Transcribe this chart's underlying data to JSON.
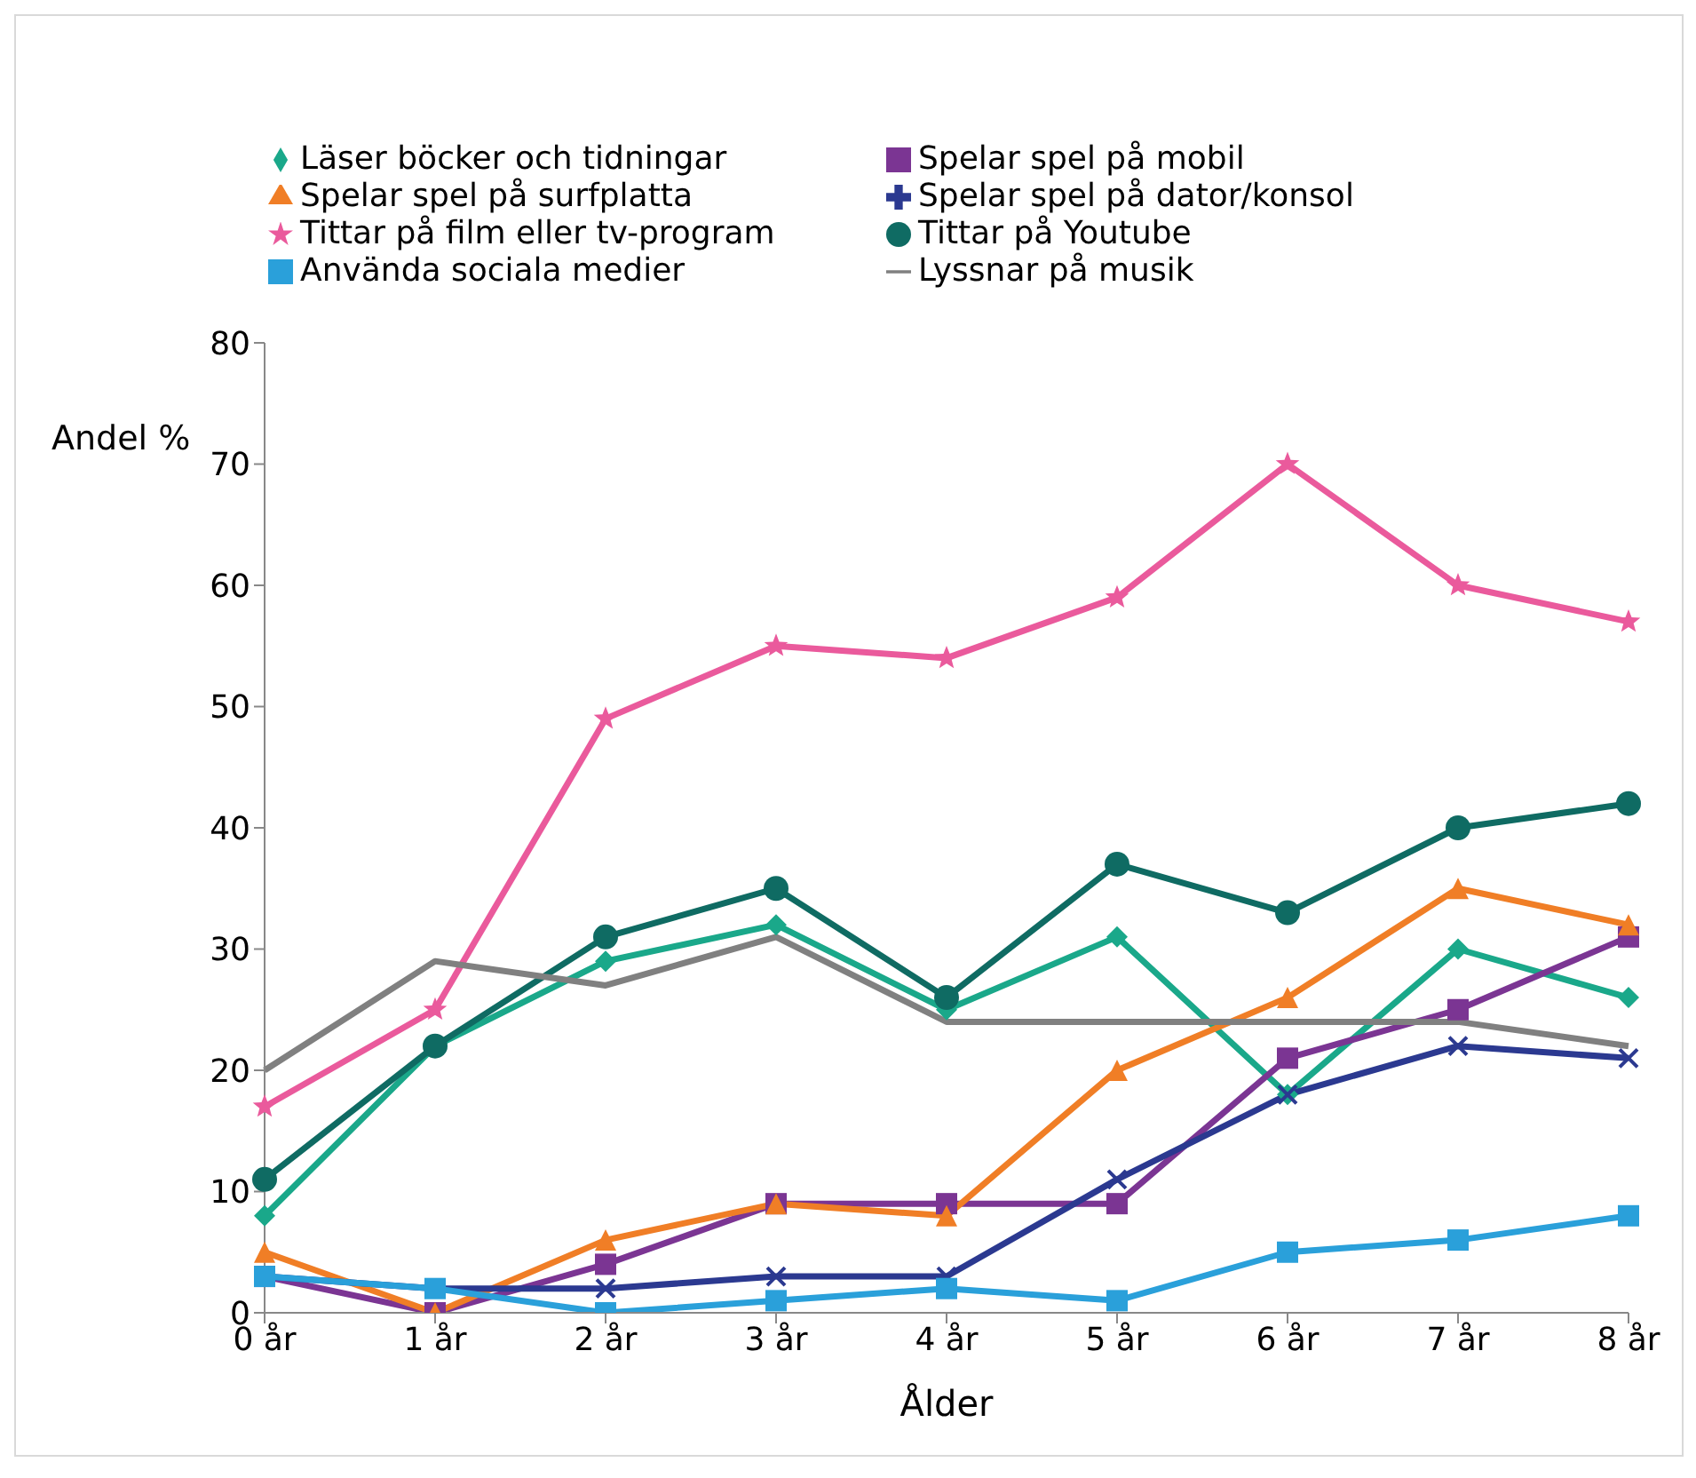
{
  "chart_data": {
    "type": "line",
    "xlabel": "Ålder",
    "ylabel": "Andel %",
    "categories": [
      "0 år",
      "1 år",
      "2 år",
      "3 år",
      "4 år",
      "5 år",
      "6 år",
      "7 år",
      "8 år"
    ],
    "ylim": [
      0,
      80
    ],
    "yticks": [
      0,
      10,
      20,
      30,
      40,
      50,
      60,
      70,
      80
    ],
    "grid": false,
    "legend": "top",
    "series": [
      {
        "name": "Läser böcker och tidningar",
        "color": "#1aa88a",
        "marker": "diamond",
        "values": [
          8,
          22,
          29,
          32,
          25,
          31,
          18,
          30,
          26
        ]
      },
      {
        "name": "Spelar spel på mobil",
        "color": "#7b3593",
        "marker": "square",
        "values": [
          3,
          0,
          4,
          9,
          9,
          9,
          21,
          25,
          31
        ]
      },
      {
        "name": "Spelar spel på surfplatta",
        "color": "#f07e26",
        "marker": "triangle",
        "values": [
          5,
          0,
          6,
          9,
          8,
          20,
          26,
          35,
          32
        ]
      },
      {
        "name": "Spelar spel på dator/konsol",
        "color": "#2b3990",
        "marker": "cross",
        "values": [
          3,
          2,
          2,
          3,
          3,
          11,
          18,
          22,
          21
        ]
      },
      {
        "name": "Tittar på film eller tv-program",
        "color": "#ea5a9c",
        "marker": "star",
        "values": [
          17,
          25,
          49,
          55,
          54,
          59,
          70,
          60,
          57
        ]
      },
      {
        "name": "Tittar på Youtube",
        "color": "#0f6b63",
        "marker": "circle",
        "values": [
          11,
          22,
          31,
          35,
          26,
          37,
          33,
          40,
          42
        ]
      },
      {
        "name": "Använda sociala medier",
        "color": "#2aa0da",
        "marker": "square",
        "values": [
          3,
          2,
          0,
          1,
          2,
          1,
          5,
          6,
          8
        ]
      },
      {
        "name": "Lyssnar på musik",
        "color": "#808080",
        "marker": "none",
        "values": [
          20,
          29,
          27,
          31,
          24,
          24,
          24,
          24,
          22
        ]
      }
    ]
  }
}
